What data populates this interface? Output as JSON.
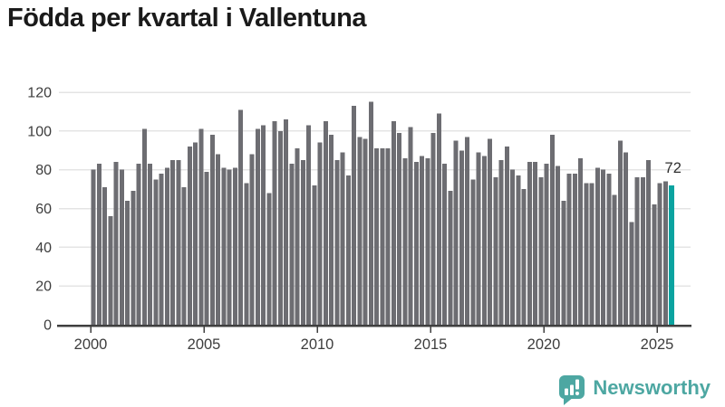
{
  "header": {
    "title": "Födda per kvartal i Vallentuna"
  },
  "chart_data": {
    "type": "bar",
    "title": "Födda per kvartal i Vallentuna",
    "x_unit": "quarter",
    "x_start": "2000 Q1",
    "x_end": "2025 Q3",
    "x_tick_labels": [
      "2000",
      "2005",
      "2010",
      "2015",
      "2020",
      "2025"
    ],
    "y_ticks": [
      0,
      20,
      40,
      60,
      80,
      100,
      120
    ],
    "ylim": [
      0,
      120
    ],
    "grid": true,
    "legend": "none",
    "bar_color": "#6d6d72",
    "highlight_color": "#0ba3a0",
    "highlight_index": 102,
    "highlight_label": "72",
    "values": [
      80,
      83,
      71,
      56,
      84,
      80,
      64,
      69,
      83,
      101,
      83,
      75,
      78,
      81,
      85,
      85,
      71,
      92,
      94,
      101,
      79,
      98,
      88,
      81,
      80,
      81,
      111,
      73,
      88,
      101,
      103,
      68,
      105,
      100,
      106,
      83,
      91,
      85,
      103,
      72,
      94,
      105,
      98,
      85,
      89,
      77,
      113,
      97,
      96,
      115,
      91,
      91,
      91,
      105,
      99,
      86,
      102,
      84,
      87,
      86,
      99,
      109,
      83,
      69,
      95,
      90,
      97,
      75,
      89,
      87,
      96,
      76,
      85,
      92,
      80,
      77,
      70,
      84,
      84,
      76,
      83,
      98,
      82,
      64,
      78,
      78,
      86,
      73,
      73,
      81,
      80,
      78,
      67,
      95,
      89,
      53,
      76,
      76,
      85,
      62,
      73,
      74,
      72
    ]
  },
  "style": {
    "grid_color": "#e4e4e4",
    "axis_color": "#3f3f3f",
    "tick_label_color": "#3d3d3d",
    "annotation_color": "#2e2e2e"
  },
  "footer": {
    "brand": "Newsworthy",
    "brand_color": "#4da7a2"
  }
}
